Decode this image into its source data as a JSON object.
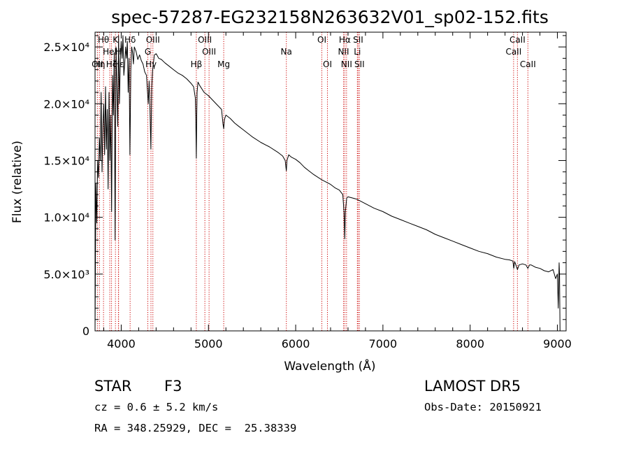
{
  "chart_data": {
    "type": "line",
    "title": "spec-57287-EG232158N263632V01_sp02-152.fits",
    "xlabel": "Wavelength (Å)",
    "ylabel": "Flux (relative)",
    "xlim": [
      3700,
      9100
    ],
    "ylim": [
      0,
      26300
    ],
    "x_ticks": [
      {
        "v": 4000,
        "label": "4000"
      },
      {
        "v": 5000,
        "label": "5000"
      },
      {
        "v": 6000,
        "label": "6000"
      },
      {
        "v": 7000,
        "label": "7000"
      },
      {
        "v": 8000,
        "label": "8000"
      },
      {
        "v": 9000,
        "label": "9000"
      }
    ],
    "y_ticks": [
      {
        "v": 0,
        "label": "0"
      },
      {
        "v": 5000,
        "label": "5.0×10³"
      },
      {
        "v": 10000,
        "label": "1.0×10⁴"
      },
      {
        "v": 15000,
        "label": "1.5×10⁴"
      },
      {
        "v": 20000,
        "label": "2.0×10⁴"
      },
      {
        "v": 25000,
        "label": "2.5×10⁴"
      }
    ],
    "grid": false,
    "line_color": "#000000",
    "marker_color": "#cc0000",
    "series": [
      {
        "x": [
          3700,
          3710,
          3720,
          3730,
          3740,
          3750,
          3760,
          3770,
          3780,
          3790,
          3800,
          3810,
          3820,
          3830,
          3840,
          3850,
          3860,
          3870,
          3880,
          3890,
          3900,
          3910,
          3920,
          3930,
          3940,
          3950,
          3960,
          3970,
          3980,
          3990,
          4000,
          4010,
          4020,
          4030,
          4040,
          4050,
          4060,
          4070,
          4080,
          4090,
          4100,
          4110,
          4120,
          4130,
          4140,
          4150,
          4170,
          4190,
          4210,
          4230,
          4250,
          4270,
          4290,
          4310,
          4320,
          4330,
          4340,
          4350,
          4360,
          4380,
          4400,
          4430,
          4460,
          4500,
          4550,
          4600,
          4650,
          4700,
          4750,
          4800,
          4830,
          4850,
          4855,
          4861,
          4866,
          4870,
          4880,
          4900,
          4950,
          5000,
          5050,
          5100,
          5150,
          5167,
          5175,
          5183,
          5200,
          5250,
          5300,
          5350,
          5400,
          5500,
          5600,
          5700,
          5800,
          5850,
          5880,
          5890,
          5893,
          5896,
          5900,
          5920,
          5950,
          6000,
          6050,
          6100,
          6150,
          6200,
          6300,
          6400,
          6450,
          6500,
          6540,
          6555,
          6563,
          6570,
          6585,
          6600,
          6650,
          6700,
          6750,
          6800,
          6900,
          7000,
          7100,
          7200,
          7300,
          7400,
          7500,
          7600,
          7700,
          7800,
          7900,
          8000,
          8100,
          8200,
          8300,
          8400,
          8450,
          8490,
          8500,
          8510,
          8520,
          8542,
          8560,
          8600,
          8640,
          8662,
          8680,
          8700,
          8750,
          8800,
          8850,
          8900,
          8950,
          8980,
          9000,
          9010,
          9020,
          9025,
          9030
        ],
        "y": [
          0,
          13000,
          9500,
          15000,
          13500,
          17000,
          15000,
          21000,
          14000,
          18000,
          20000,
          15500,
          21500,
          16000,
          19500,
          12500,
          21000,
          15000,
          19000,
          10500,
          22500,
          19000,
          24500,
          8000,
          25000,
          21500,
          18000,
          26000,
          20000,
          23800,
          25500,
          24000,
          26000,
          22500,
          23500,
          25000,
          24000,
          25500,
          21000,
          24000,
          15500,
          23000,
          25000,
          24500,
          23500,
          25000,
          24600,
          23900,
          24300,
          23800,
          23500,
          22800,
          22500,
          20000,
          22000,
          19500,
          16000,
          21500,
          23000,
          24300,
          24400,
          24000,
          23900,
          23600,
          23300,
          23000,
          22700,
          22500,
          22200,
          21800,
          21500,
          20500,
          18500,
          15200,
          19000,
          21000,
          21900,
          21600,
          21000,
          20700,
          20300,
          19900,
          19500,
          18200,
          17800,
          18600,
          19000,
          18700,
          18300,
          18000,
          17700,
          17100,
          16600,
          16200,
          15700,
          15400,
          15000,
          14300,
          14100,
          14500,
          15000,
          15500,
          15300,
          15100,
          14800,
          14400,
          14100,
          13800,
          13300,
          12900,
          12600,
          12400,
          12000,
          10400,
          8100,
          10500,
          11700,
          11800,
          11700,
          11600,
          11400,
          11200,
          10800,
          10500,
          10100,
          9800,
          9500,
          9200,
          8900,
          8500,
          8200,
          7900,
          7600,
          7300,
          7000,
          6800,
          6500,
          6300,
          6250,
          6150,
          5500,
          6100,
          5900,
          5400,
          5800,
          5900,
          5800,
          5500,
          5800,
          5800,
          5600,
          5500,
          5300,
          5200,
          5400,
          4600,
          5000,
          2000,
          6000,
          5000,
          0
        ]
      }
    ],
    "line_markers": [
      {
        "x": 3727,
        "labels": [
          "OII"
        ],
        "row": 3
      },
      {
        "x": 3750,
        "labels": [
          "Hη"
        ],
        "row": 3
      },
      {
        "x": 3797,
        "labels": [
          "Hθ"
        ],
        "row": 1
      },
      {
        "x": 3869,
        "labels": [
          "HeI"
        ],
        "row": 2
      },
      {
        "x": 3889,
        "labels": [
          "Hζ"
        ],
        "row": 3
      },
      {
        "x": 3934,
        "labels": [
          "K"
        ],
        "row": 1
      },
      {
        "x": 3968,
        "labels": [
          "H"
        ],
        "row": 2
      },
      {
        "x": 3970,
        "labels": [
          "Hε"
        ],
        "row": 3
      },
      {
        "x": 4102,
        "labels": [
          "Hδ"
        ],
        "row": 1
      },
      {
        "x": 4305,
        "labels": [
          "G"
        ],
        "row": 2
      },
      {
        "x": 4341,
        "labels": [
          "Hγ"
        ],
        "row": 3
      },
      {
        "x": 4363,
        "labels": [
          "OIII"
        ],
        "row": 1
      },
      {
        "x": 4861,
        "labels": [
          "Hβ"
        ],
        "row": 3
      },
      {
        "x": 4959,
        "labels": [
          "OIII"
        ],
        "row": 1
      },
      {
        "x": 5007,
        "labels": [
          "OIII"
        ],
        "row": 2
      },
      {
        "x": 5175,
        "labels": [
          "Mg"
        ],
        "row": 3
      },
      {
        "x": 5893,
        "labels": [
          "Na"
        ],
        "row": 2
      },
      {
        "x": 6300,
        "labels": [
          "OI"
        ],
        "row": 1
      },
      {
        "x": 6364,
        "labels": [
          "OI"
        ],
        "row": 3
      },
      {
        "x": 6548,
        "labels": [
          "NII"
        ],
        "row": 2
      },
      {
        "x": 6563,
        "labels": [
          "Hα"
        ],
        "row": 1
      },
      {
        "x": 6583,
        "labels": [
          "NII"
        ],
        "row": 3
      },
      {
        "x": 6707,
        "labels": [
          "Li"
        ],
        "row": 2
      },
      {
        "x": 6716,
        "labels": [
          "SII"
        ],
        "row": 1
      },
      {
        "x": 6731,
        "labels": [
          "SII"
        ],
        "row": 3
      },
      {
        "x": 8498,
        "labels": [
          "CaII"
        ],
        "row": 2
      },
      {
        "x": 8542,
        "labels": [
          "CaII"
        ],
        "row": 1
      },
      {
        "x": 8662,
        "labels": [
          "CaII"
        ],
        "row": 3
      }
    ]
  },
  "footer": {
    "class_label": "STAR",
    "subclass": "F3",
    "survey": "LAMOST DR5",
    "redshift": "cz = 0.6 ± 5.2 km/s",
    "obs_date": "Obs-Date: 20150921",
    "coords": "RA = 348.25929, DEC =  25.38339"
  }
}
